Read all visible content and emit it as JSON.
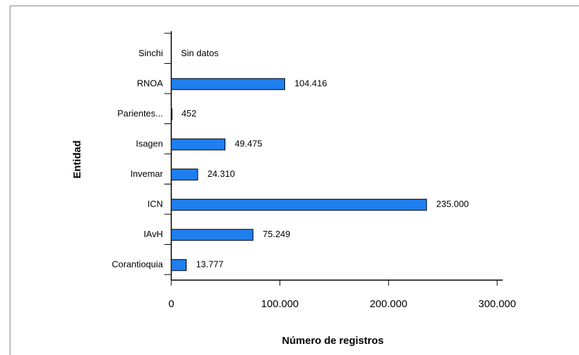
{
  "chart_data": {
    "type": "hbar",
    "categories": [
      "Sinchi",
      "RNOA",
      "Parientes...",
      "Isagen",
      "Invemar",
      "ICN",
      "IAvH",
      "Corantioquia"
    ],
    "values": [
      null,
      104416,
      452,
      49475,
      24310,
      235000,
      75249,
      13777
    ],
    "value_labels": [
      "Sin datos",
      "104.416",
      "452",
      "49.475",
      "24.310",
      "235.000",
      "75.249",
      "13.777"
    ],
    "color": "#1f7fef",
    "xlim": [
      0,
      300000
    ],
    "xticks": [
      0,
      {
        "value": 100000,
        "label": "100.000"
      },
      {
        "value": 200000,
        "label": "200.000"
      },
      {
        "value": 300000,
        "label": "300.000"
      }
    ],
    "xlabel": "Número de registros",
    "ylabel": "Entidad"
  }
}
